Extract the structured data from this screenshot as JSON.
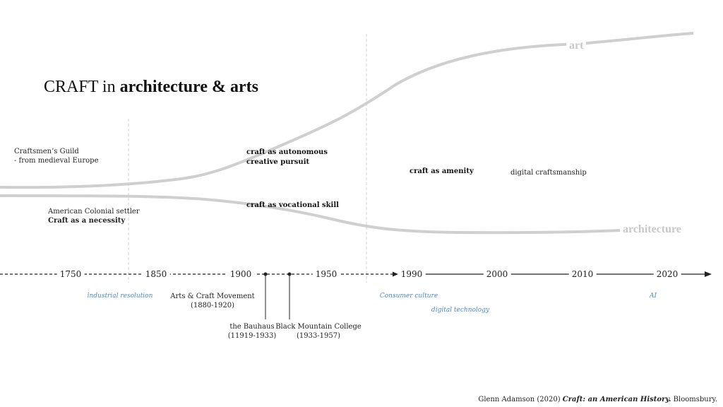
{
  "title": {
    "plain": "CRAFT in ",
    "bold": "architecture & arts"
  },
  "curves": {
    "art_label": "art",
    "architecture_label": "architecture"
  },
  "notes": {
    "guild_line1": "Craftsmen’s Guild",
    "guild_line2": "- from medieval Europe",
    "colonial_line1": "American Colonial settler",
    "colonial_line2": "Craft as a necessity",
    "autonomous_line1": "craft as autonomous",
    "autonomous_line2": "creative pursuit",
    "vocational": "craft as vocational skill",
    "amenity": "craft as amenity",
    "digital_craft": "digital craftsmanship"
  },
  "timeline": {
    "years": [
      "1750",
      "1850",
      "1900",
      "1950",
      "1990",
      "2000",
      "2010",
      "2020"
    ]
  },
  "eras": {
    "industrial": "industrial resolution",
    "consumer": "Consumer culture",
    "digital": "digital technology",
    "ai": "AI"
  },
  "events": {
    "arts_craft_name": "Arts & Craft Movement",
    "arts_craft_years": "(1880-1920)",
    "bauhaus_name": "the Bauhaus",
    "bauhaus_years": "(11919-1933)",
    "bmc_name": "Black Mountain College",
    "bmc_years": "(1933-1957)"
  },
  "citation": {
    "before": "Glenn Adamson (2020) ",
    "book": "Craft: an American History.",
    "after": " Bloomsbury."
  },
  "colors": {
    "curve": "#cfcfcf",
    "accent_blue": "#4a8cc9",
    "axis": "#222222"
  }
}
